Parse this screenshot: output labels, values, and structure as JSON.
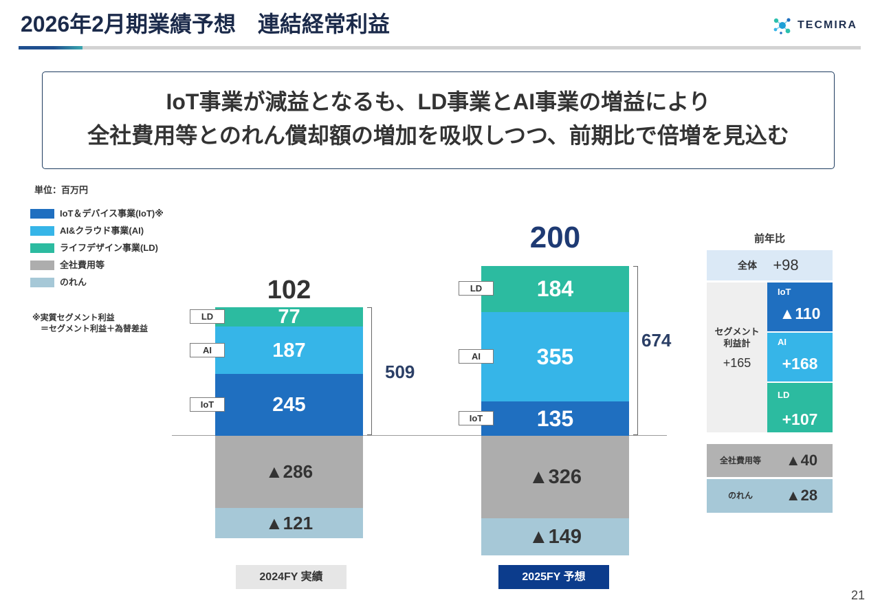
{
  "header": {
    "title": "2026年2月期業績予想　連結経常利益",
    "logo_text": "TECMIRA"
  },
  "message": {
    "line1": "IoT事業が減益となるも、LD事業とAI事業の増益により",
    "line2": "全社費用等とのれん償却額の増加を吸収しつつ、前期比で倍増を見込む"
  },
  "note": {
    "line1": "※実質セグメント利益",
    "line2": "＝セグメント利益＋為替差益"
  },
  "chart_data": {
    "type": "bar",
    "stacked": true,
    "unit": "単位：百万円",
    "categories": [
      "2024FY 実績",
      "2025FY 予想"
    ],
    "series": [
      {
        "name": "IoT＆デバイス事業(IoT)※",
        "tag": "IoT",
        "color": "#1f6fc0",
        "values": [
          245,
          135
        ]
      },
      {
        "name": "AI&クラウド事業(AI)",
        "tag": "AI",
        "color": "#36b5e8",
        "values": [
          187,
          355
        ]
      },
      {
        "name": "ライフデザイン事業(LD)",
        "tag": "LD",
        "color": "#2cbba0",
        "values": [
          77,
          184
        ]
      },
      {
        "name": "全社費用等",
        "color": "#adadad",
        "values": [
          -286,
          -326
        ]
      },
      {
        "name": "のれん",
        "color": "#a6c8d7",
        "values": [
          -121,
          -149
        ]
      }
    ],
    "totals": [
      102,
      200
    ],
    "segment_subtotals": [
      509,
      674
    ],
    "legend_position": "top-left",
    "grid": false
  },
  "yoy": {
    "title": "前年比",
    "overall": {
      "label": "全体",
      "value": "+98",
      "color": "#dbe9f6"
    },
    "segment_total": {
      "label_line1": "セグメント",
      "label_line2": "利益計",
      "value": "+165"
    },
    "segments": [
      {
        "label": "IoT",
        "value": "▲110",
        "color": "#1f6fc0"
      },
      {
        "label": "AI",
        "value": "+168",
        "color": "#36b5e8"
      },
      {
        "label": "LD",
        "value": "+107",
        "color": "#2cbba0"
      }
    ],
    "corporate_costs": {
      "label": "全社費用等",
      "value": "▲40",
      "color": "#b2b2b2"
    },
    "goodwill": {
      "label": "のれん",
      "value": "▲28",
      "color": "#a6c8d7"
    }
  },
  "page_number": "21"
}
